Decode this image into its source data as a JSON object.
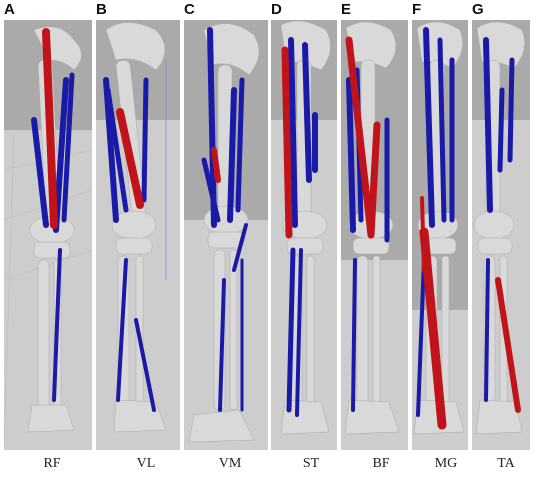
{
  "panels": [
    {
      "letter": "A",
      "muscle": "RF"
    },
    {
      "letter": "B",
      "muscle": "VL"
    },
    {
      "letter": "C",
      "muscle": "VM"
    },
    {
      "letter": "D",
      "muscle": "ST"
    },
    {
      "letter": "E",
      "muscle": "BF"
    },
    {
      "letter": "F",
      "muscle": "MG"
    },
    {
      "letter": "G",
      "muscle": "TA"
    }
  ],
  "colors": {
    "highlighted_muscle": "#c0141a",
    "other_muscles": "#1a1aa8",
    "bone": "#d8d8d8",
    "background_upper": "#a9a9a9",
    "background_lower": "#cfcfcf"
  }
}
